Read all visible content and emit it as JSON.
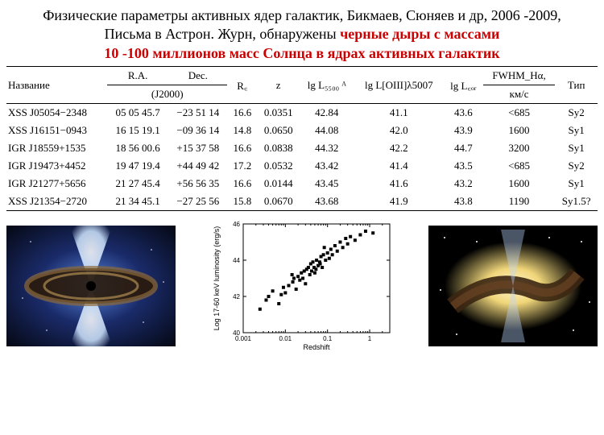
{
  "title": {
    "line1": "Физические параметры активных ядер галактик, Бикмаев, Сюняев и др, 2006 -2009,",
    "line2a": "Письма в Астрон. Журн, обнаружены ",
    "line2b": "черные дыры с массами",
    "line3": "10 -100 миллионов масс Солнца в ядрах активных галактик"
  },
  "table": {
    "headers": {
      "name": "Название",
      "ra": "R.A.",
      "dec": "Dec.",
      "epoch": "(J2000)",
      "re": "R꜀",
      "z": "z",
      "lg5500": "lg L₅₅₀₀ ᴬ",
      "lgoiii": "lg L[OIII]λ5007",
      "lgcor": "lg L꜀ₒᵣ",
      "fwhm": "FWHM_Hα,",
      "fwhm_unit": "км/с",
      "type": "Тип"
    },
    "rows": [
      {
        "name": "XSS J05054−2348",
        "ra": "05 05 45.7",
        "dec": "−23 51 14",
        "re": "16.6",
        "z": "0.0351",
        "l55": "42.84",
        "loiii": "41.1",
        "lcor": "43.6",
        "fwhm": "<685",
        "type": "Sy2"
      },
      {
        "name": "XSS J16151−0943",
        "ra": "16 15 19.1",
        "dec": "−09 36 14",
        "re": "14.8",
        "z": "0.0650",
        "l55": "44.08",
        "loiii": "42.0",
        "lcor": "43.9",
        "fwhm": "1600",
        "type": "Sy1"
      },
      {
        "name": "IGR J18559+1535",
        "ra": "18 56 00.6",
        "dec": "+15 37 58",
        "re": "16.6",
        "z": "0.0838",
        "l55": "44.32",
        "loiii": "42.2",
        "lcor": "44.7",
        "fwhm": "3200",
        "type": "Sy1"
      },
      {
        "name": "IGR J19473+4452",
        "ra": "19 47 19.4",
        "dec": "+44 49 42",
        "re": "17.2",
        "z": "0.0532",
        "l55": "43.42",
        "loiii": "41.4",
        "lcor": "43.5",
        "fwhm": "<685",
        "type": "Sy2"
      },
      {
        "name": "IGR J21277+5656",
        "ra": "21 27 45.4",
        "dec": "+56 56 35",
        "re": "16.6",
        "z": "0.0144",
        "l55": "43.45",
        "loiii": "41.6",
        "lcor": "43.2",
        "fwhm": "1600",
        "type": "Sy1"
      },
      {
        "name": "XSS J21354−2720",
        "ra": "21 34 45.1",
        "dec": "−27 25 56",
        "re": "15.8",
        "z": "0.0670",
        "l55": "43.68",
        "loiii": "41.9",
        "lcor": "43.8",
        "fwhm": "1190",
        "type": "Sy1.5?"
      }
    ]
  },
  "scatter": {
    "type": "scatter",
    "xlabel": "Redshift",
    "ylabel": "Log 17-60 keV luminosity (erg/s)",
    "xscale": "log",
    "yscale": "linear",
    "xlim": [
      0.001,
      3
    ],
    "ylim": [
      40,
      46
    ],
    "xticks": [
      0.001,
      0.01,
      0.1,
      1
    ],
    "xtick_labels": [
      "0.001",
      "0.01",
      "0.1",
      "1"
    ],
    "yticks": [
      40,
      42,
      44,
      46
    ],
    "ytick_labels": [
      "40",
      "42",
      "44",
      "46"
    ],
    "marker": "square",
    "marker_size": 4,
    "marker_color": "#000000",
    "background": "#ffffff",
    "axis_color": "#000000",
    "label_fontsize": 9,
    "tick_fontsize": 8,
    "points": [
      [
        0.0025,
        41.3
      ],
      [
        0.0035,
        41.8
      ],
      [
        0.004,
        42.0
      ],
      [
        0.005,
        42.3
      ],
      [
        0.007,
        41.6
      ],
      [
        0.008,
        42.1
      ],
      [
        0.009,
        42.5
      ],
      [
        0.01,
        42.2
      ],
      [
        0.012,
        42.6
      ],
      [
        0.0144,
        43.2
      ],
      [
        0.015,
        42.8
      ],
      [
        0.016,
        43.0
      ],
      [
        0.018,
        42.4
      ],
      [
        0.02,
        43.1
      ],
      [
        0.022,
        42.9
      ],
      [
        0.024,
        43.3
      ],
      [
        0.026,
        43.0
      ],
      [
        0.028,
        43.4
      ],
      [
        0.03,
        42.7
      ],
      [
        0.032,
        43.5
      ],
      [
        0.0351,
        43.6
      ],
      [
        0.038,
        43.2
      ],
      [
        0.04,
        43.8
      ],
      [
        0.042,
        43.4
      ],
      [
        0.045,
        43.9
      ],
      [
        0.048,
        43.6
      ],
      [
        0.05,
        43.3
      ],
      [
        0.0532,
        43.5
      ],
      [
        0.055,
        44.0
      ],
      [
        0.06,
        43.7
      ],
      [
        0.065,
        43.9
      ],
      [
        0.067,
        43.8
      ],
      [
        0.07,
        44.2
      ],
      [
        0.075,
        43.6
      ],
      [
        0.08,
        44.3
      ],
      [
        0.0838,
        44.7
      ],
      [
        0.09,
        44.0
      ],
      [
        0.1,
        44.4
      ],
      [
        0.11,
        44.1
      ],
      [
        0.12,
        44.6
      ],
      [
        0.13,
        44.3
      ],
      [
        0.15,
        44.8
      ],
      [
        0.17,
        44.5
      ],
      [
        0.2,
        45.0
      ],
      [
        0.23,
        44.7
      ],
      [
        0.27,
        45.2
      ],
      [
        0.3,
        44.9
      ],
      [
        0.35,
        45.3
      ],
      [
        0.45,
        45.1
      ],
      [
        0.6,
        45.4
      ],
      [
        0.8,
        45.6
      ],
      [
        1.2,
        45.5
      ]
    ]
  },
  "fig_left": {
    "type": "natural-image",
    "description": "Artist AGN with blue jets and dark disk",
    "bg_colors": [
      "#050814",
      "#1a2b6a",
      "#5a8ae0",
      "#d6e4ff"
    ],
    "disk_color": "#8c6a3a",
    "jet_color": "#cfe6ff"
  },
  "fig_right": {
    "type": "natural-image",
    "description": "Galaxy with dust lane and jets (Centaurus-A like)",
    "bg_color": "#000000",
    "glow_color": "#f0d67a",
    "dust_color": "#5a3a1f",
    "star_color": "#ffffff"
  }
}
